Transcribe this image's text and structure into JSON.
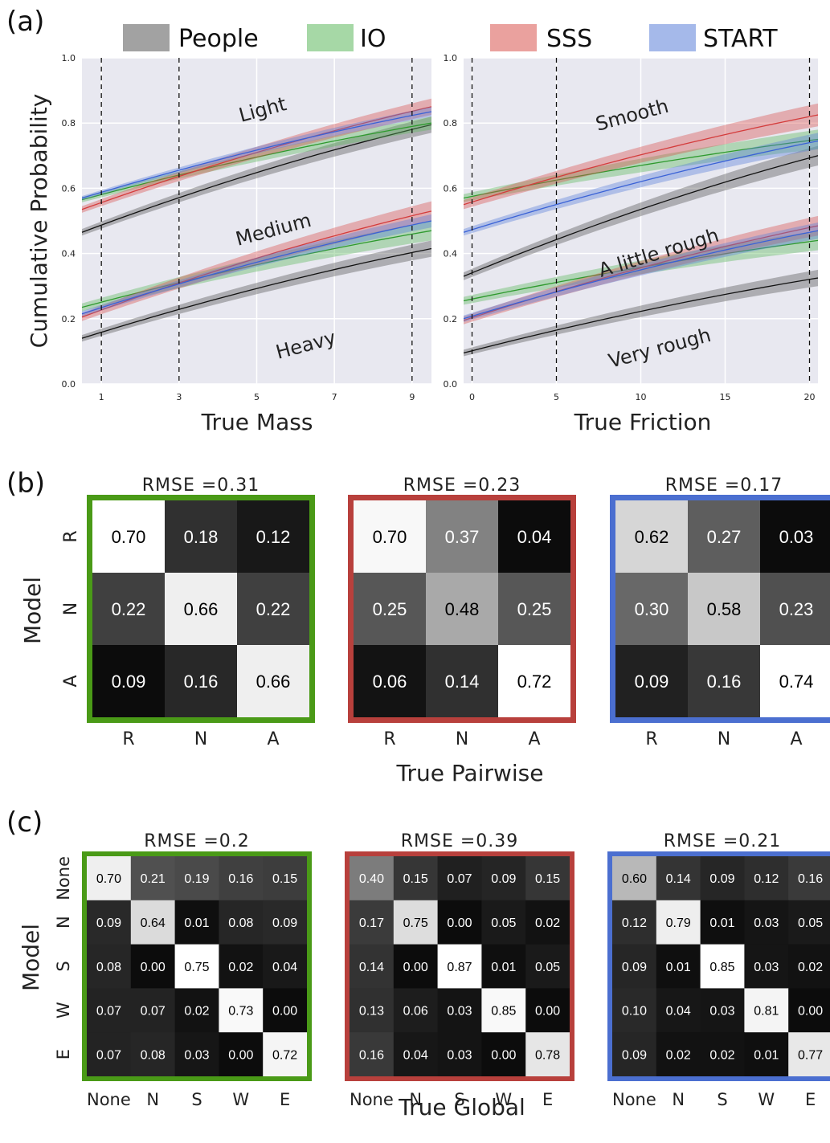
{
  "panel_labels": {
    "a": "(a)",
    "b": "(b)",
    "c": "(c)"
  },
  "legend": [
    {
      "name": "People",
      "color": "#555555"
    },
    {
      "name": "IO",
      "color": "#5cb85c"
    },
    {
      "name": "SSS",
      "color": "#d9534f"
    },
    {
      "name": "START",
      "color": "#5b7fd9"
    }
  ],
  "chart_data": [
    {
      "type": "line",
      "panel": "a-left",
      "xlabel": "True Mass",
      "ylabel": "Cumulative Probability",
      "xlim": [
        0.5,
        9.5
      ],
      "ylim": [
        0.0,
        1.0
      ],
      "xticks": [
        "1",
        "3",
        "5",
        "7",
        "9"
      ],
      "yticks": [
        "0.0",
        "0.2",
        "0.4",
        "0.6",
        "0.8",
        "1.0"
      ],
      "vlines": [
        1,
        3,
        9
      ],
      "grid": true,
      "annotations": [
        "Light",
        "Medium",
        "Heavy"
      ],
      "x": [
        0.5,
        9.5
      ],
      "series": [
        {
          "name": "People",
          "group": "upper",
          "y": [
            0.465,
            0.795
          ],
          "band": 0.025
        },
        {
          "name": "IO",
          "group": "upper",
          "y": [
            0.565,
            0.8
          ],
          "band": 0.02
        },
        {
          "name": "SSS",
          "group": "upper",
          "y": [
            0.535,
            0.85
          ],
          "band": 0.025
        },
        {
          "name": "START",
          "group": "upper",
          "y": [
            0.57,
            0.835
          ],
          "band": 0.015
        },
        {
          "name": "People",
          "group": "lower",
          "y": [
            0.14,
            0.415
          ],
          "band": 0.025
        },
        {
          "name": "IO",
          "group": "lower",
          "y": [
            0.235,
            0.47
          ],
          "band": 0.03
        },
        {
          "name": "SSS",
          "group": "lower",
          "y": [
            0.205,
            0.53
          ],
          "band": 0.03
        },
        {
          "name": "START",
          "group": "lower",
          "y": [
            0.215,
            0.5
          ],
          "band": 0.02
        }
      ]
    },
    {
      "type": "line",
      "panel": "a-right",
      "xlabel": "True Friction",
      "xlim": [
        -0.5,
        20.5
      ],
      "ylim": [
        0.0,
        1.0
      ],
      "xticks": [
        "0",
        "5",
        "10",
        "15",
        "20"
      ],
      "yticks": [
        "0.0",
        "0.2",
        "0.4",
        "0.6",
        "0.8",
        "1.0"
      ],
      "vlines": [
        0,
        5,
        20
      ],
      "grid": true,
      "annotations": [
        "Smooth",
        "A little rough",
        "Very rough"
      ],
      "x": [
        -0.5,
        20.5
      ],
      "series": [
        {
          "name": "People",
          "group": "upper",
          "y": [
            0.33,
            0.7
          ],
          "band": 0.03
        },
        {
          "name": "IO",
          "group": "upper",
          "y": [
            0.57,
            0.75
          ],
          "band": 0.03
        },
        {
          "name": "SSS",
          "group": "upper",
          "y": [
            0.55,
            0.825
          ],
          "band": 0.035
        },
        {
          "name": "START",
          "group": "upper",
          "y": [
            0.465,
            0.745
          ],
          "band": 0.025
        },
        {
          "name": "People",
          "group": "lower",
          "y": [
            0.095,
            0.325
          ],
          "band": 0.025
        },
        {
          "name": "IO",
          "group": "lower",
          "y": [
            0.255,
            0.44
          ],
          "band": 0.03
        },
        {
          "name": "SSS",
          "group": "lower",
          "y": [
            0.195,
            0.485
          ],
          "band": 0.03
        },
        {
          "name": "START",
          "group": "lower",
          "y": [
            0.2,
            0.47
          ],
          "band": 0.025
        }
      ]
    },
    {
      "type": "heatmap",
      "panel": "b",
      "xlabel": "True Pairwise",
      "ylabel": "Model",
      "labels": [
        "R",
        "N",
        "A"
      ],
      "matrices": [
        {
          "title": "RMSE =0.31",
          "border": "#4a9a17",
          "values": [
            [
              0.7,
              0.18,
              0.12
            ],
            [
              0.22,
              0.66,
              0.22
            ],
            [
              0.09,
              0.16,
              0.66
            ]
          ]
        },
        {
          "title": "RMSE =0.23",
          "border": "#b8403c",
          "values": [
            [
              0.7,
              0.37,
              0.04
            ],
            [
              0.25,
              0.48,
              0.25
            ],
            [
              0.06,
              0.14,
              0.72
            ]
          ]
        },
        {
          "title": "RMSE =0.17",
          "border": "#4b6fd0",
          "values": [
            [
              0.62,
              0.27,
              0.03
            ],
            [
              0.3,
              0.58,
              0.23
            ],
            [
              0.09,
              0.16,
              0.74
            ]
          ]
        }
      ]
    },
    {
      "type": "heatmap",
      "panel": "c",
      "xlabel": "True Global",
      "ylabel": "Model",
      "labels": [
        "None",
        "N",
        "S",
        "W",
        "E"
      ],
      "matrices": [
        {
          "title": "RMSE =0.2",
          "border": "#4a9a17",
          "values": [
            [
              0.7,
              0.21,
              0.19,
              0.16,
              0.15
            ],
            [
              0.09,
              0.64,
              0.01,
              0.08,
              0.09
            ],
            [
              0.08,
              0.0,
              0.75,
              0.02,
              0.04
            ],
            [
              0.07,
              0.07,
              0.02,
              0.73,
              0.0
            ],
            [
              0.07,
              0.08,
              0.03,
              0.0,
              0.72
            ]
          ]
        },
        {
          "title": "RMSE =0.39",
          "border": "#b8403c",
          "values": [
            [
              0.4,
              0.15,
              0.07,
              0.09,
              0.15
            ],
            [
              0.17,
              0.75,
              0.0,
              0.05,
              0.02
            ],
            [
              0.14,
              0.0,
              0.87,
              0.01,
              0.05
            ],
            [
              0.13,
              0.06,
              0.03,
              0.85,
              0.0
            ],
            [
              0.16,
              0.04,
              0.03,
              0.0,
              0.78
            ]
          ]
        },
        {
          "title": "RMSE =0.21",
          "border": "#4b6fd0",
          "values": [
            [
              0.6,
              0.14,
              0.09,
              0.12,
              0.16
            ],
            [
              0.12,
              0.79,
              0.01,
              0.03,
              0.05
            ],
            [
              0.09,
              0.01,
              0.85,
              0.03,
              0.02
            ],
            [
              0.1,
              0.04,
              0.03,
              0.81,
              0.0
            ],
            [
              0.09,
              0.02,
              0.02,
              0.01,
              0.77
            ]
          ]
        }
      ]
    }
  ]
}
